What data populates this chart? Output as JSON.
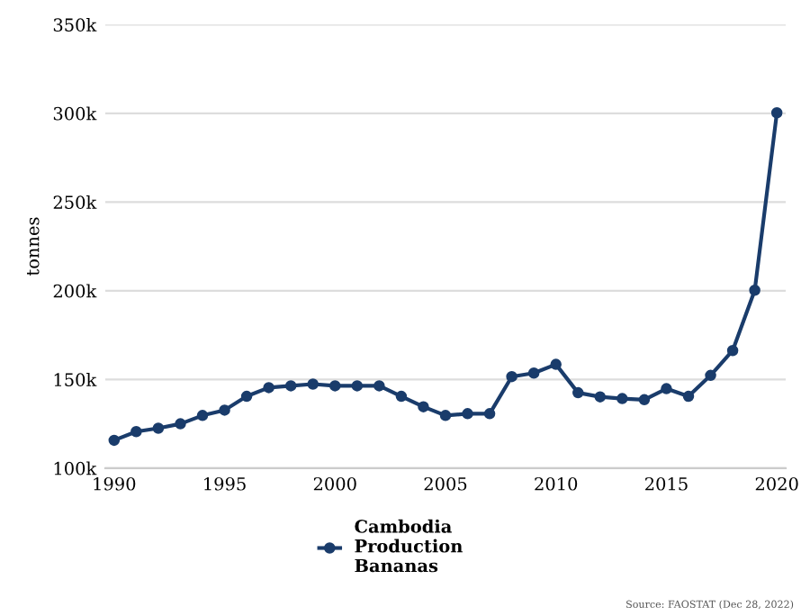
{
  "chart_data": {
    "type": "line",
    "ylabel": "tonnes",
    "legend": "bottom",
    "grid": "y",
    "marker": "circle",
    "line_style": "solid",
    "x": [
      1990,
      1991,
      1992,
      1993,
      1994,
      1995,
      1996,
      1997,
      1998,
      1999,
      2000,
      2001,
      2002,
      2003,
      2004,
      2005,
      2006,
      2007,
      2008,
      2009,
      2010,
      2011,
      2012,
      2013,
      2014,
      2015,
      2016,
      2017,
      2018,
      2019,
      2020
    ],
    "series": [
      {
        "name": "Cambodia\nProduction\nBananas",
        "color": "#1a3c6b",
        "values": [
          115700,
          120600,
          122500,
          125000,
          129700,
          132700,
          140500,
          145400,
          146400,
          147400,
          146400,
          146400,
          146400,
          140500,
          134600,
          129700,
          130700,
          130700,
          151600,
          153600,
          158500,
          142500,
          140200,
          139200,
          138600,
          144800,
          140500,
          152300,
          166300,
          200300,
          300300
        ]
      }
    ],
    "xlim": [
      1989.6,
      2020.4
    ],
    "xticks": [
      1990,
      1995,
      2000,
      2005,
      2010,
      2015,
      2020
    ],
    "ylim": [
      100000,
      350000
    ],
    "yticks": [
      {
        "value": 100000,
        "label": "100k"
      },
      {
        "value": 150000,
        "label": "150k"
      },
      {
        "value": 200000,
        "label": "200k"
      },
      {
        "value": 250000,
        "label": "250k"
      },
      {
        "value": 300000,
        "label": "300k"
      },
      {
        "value": 350000,
        "label": "350k"
      }
    ],
    "annotations": [
      "Source: FAOSTAT (Dec 28, 2022)"
    ]
  }
}
